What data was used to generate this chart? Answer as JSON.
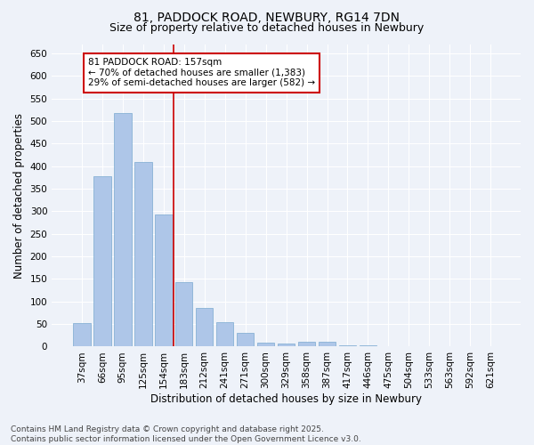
{
  "title_line1": "81, PADDOCK ROAD, NEWBURY, RG14 7DN",
  "title_line2": "Size of property relative to detached houses in Newbury",
  "xlabel": "Distribution of detached houses by size in Newbury",
  "ylabel": "Number of detached properties",
  "categories": [
    "37sqm",
    "66sqm",
    "95sqm",
    "125sqm",
    "154sqm",
    "183sqm",
    "212sqm",
    "241sqm",
    "271sqm",
    "300sqm",
    "329sqm",
    "358sqm",
    "387sqm",
    "417sqm",
    "446sqm",
    "475sqm",
    "504sqm",
    "533sqm",
    "563sqm",
    "592sqm",
    "621sqm"
  ],
  "values": [
    52,
    378,
    519,
    410,
    293,
    143,
    85,
    55,
    30,
    8,
    6,
    10,
    10,
    2,
    2,
    1,
    0,
    0,
    1,
    0,
    1
  ],
  "bar_color": "#aec6e8",
  "bar_edge_color": "#7aaad0",
  "vline_x": 4.5,
  "vline_color": "#cc0000",
  "annotation_text": "81 PADDOCK ROAD: 157sqm\n← 70% of detached houses are smaller (1,383)\n29% of semi-detached houses are larger (582) →",
  "annotation_box_color": "#ffffff",
  "annotation_box_edge_color": "#cc0000",
  "ylim": [
    0,
    670
  ],
  "yticks": [
    0,
    50,
    100,
    150,
    200,
    250,
    300,
    350,
    400,
    450,
    500,
    550,
    600,
    650
  ],
  "background_color": "#eef2f9",
  "footer_text": "Contains HM Land Registry data © Crown copyright and database right 2025.\nContains public sector information licensed under the Open Government Licence v3.0.",
  "title_fontsize": 10,
  "subtitle_fontsize": 9,
  "axis_label_fontsize": 8.5,
  "tick_fontsize": 7.5,
  "annotation_fontsize": 7.5,
  "footer_fontsize": 6.5
}
